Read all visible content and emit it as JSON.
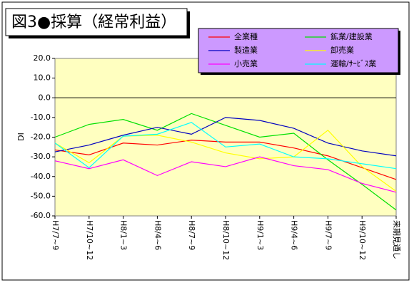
{
  "chart_data": {
    "type": "line",
    "title": "図3●採算（経常利益）",
    "y_label": "DI",
    "categories": [
      "H7/7~9",
      "H7/10~12",
      "H8/1~3",
      "H8/4~6",
      "H8/7~9",
      "H8/10~12",
      "H9/1~3",
      "H9/4~6",
      "H9/7~9",
      "H9/10~12",
      "来期見通し"
    ],
    "series": [
      {
        "name": "全業種",
        "color": "#ff0000",
        "values": [
          -26.5,
          -29,
          -23,
          -24,
          -21.5,
          -22.5,
          -22.5,
          -25.5,
          -29.5,
          -35.5,
          -41.5
        ]
      },
      {
        "name": "鉱業/建設業",
        "color": "#00e000",
        "values": [
          -20,
          -13.5,
          -11,
          -16.5,
          -8,
          -14,
          -20,
          -18,
          -31.5,
          -44,
          -57
        ]
      },
      {
        "name": "製造業",
        "color": "#0000c0",
        "values": [
          -27.5,
          -24,
          -19,
          -15,
          -18.5,
          -10,
          -11.5,
          -15.5,
          -23,
          -27,
          -29.5
        ]
      },
      {
        "name": "卸売業",
        "color": "#ffff00",
        "values": [
          -23,
          -33,
          -19.5,
          -19,
          -22.5,
          -28,
          -31,
          -30,
          -16.5,
          -35,
          -47.5
        ]
      },
      {
        "name": "小売業",
        "color": "#ff00ff",
        "values": [
          -32,
          -36,
          -31.5,
          -39.5,
          -32.5,
          -35,
          -30,
          -34.5,
          -36.5,
          -43.5,
          -48
        ]
      },
      {
        "name": "運輸/ｻｰﾋﾞｽ業",
        "color": "#00ffff",
        "values": [
          -23,
          -35.5,
          -19.5,
          -18.5,
          -12.5,
          -25,
          -23.5,
          -30,
          -31,
          -33.5,
          -36
        ]
      }
    ],
    "ylim": [
      -60,
      20
    ],
    "yticks": [
      {
        "value": -60,
        "label": "-60.0"
      },
      {
        "value": -50,
        "label": "-50.0"
      },
      {
        "value": -40,
        "label": "-40.0"
      },
      {
        "value": -30,
        "label": "-30.0"
      },
      {
        "value": -20,
        "label": "-20.0"
      },
      {
        "value": -10,
        "label": "-10.0"
      },
      {
        "value": 0,
        "label": "0.0"
      },
      {
        "value": 10,
        "label": "10.0"
      },
      {
        "value": 20,
        "label": "20.0"
      }
    ]
  }
}
